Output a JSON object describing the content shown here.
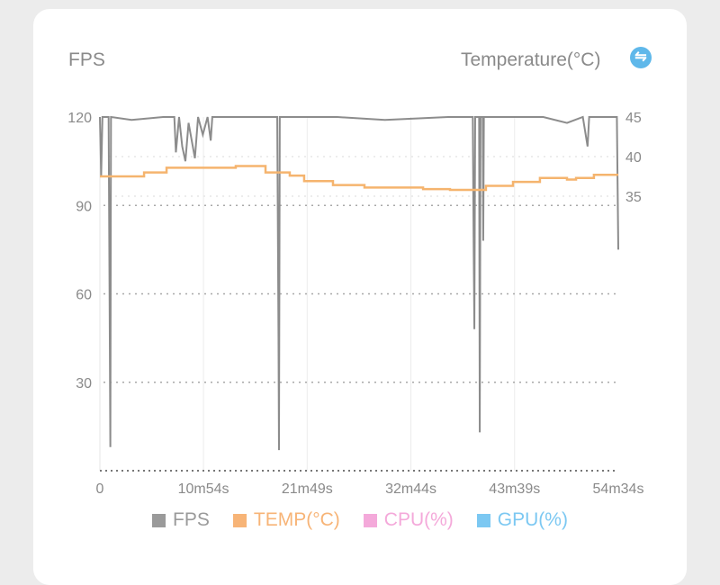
{
  "header": {
    "left_axis_title": "FPS",
    "right_axis_title": "Temperature(°C)",
    "swap_icon": "swap-vertical-icon"
  },
  "chart_data": {
    "type": "line",
    "xlabel": "",
    "x_unit": "seconds",
    "xlim": [
      0,
      3274
    ],
    "x_ticks": [
      0,
      654,
      1309,
      1964,
      2619,
      3274
    ],
    "x_tick_labels": [
      "0",
      "10m54s",
      "21m49s",
      "32m44s",
      "43m39s",
      "54m34s"
    ],
    "y_left": {
      "label": "FPS",
      "lim": [
        0,
        120
      ],
      "ticks": [
        30,
        60,
        90,
        120
      ]
    },
    "y_right": {
      "label": "Temperature(°C)",
      "lim": [
        0,
        45
      ],
      "ticks": [
        35,
        40,
        45
      ]
    },
    "grid": true,
    "legend_position": "bottom",
    "series": [
      {
        "name": "FPS",
        "axis": "left",
        "color": "#8c8c8c",
        "points": [
          [
            0,
            120
          ],
          [
            8,
            100
          ],
          [
            16,
            120
          ],
          [
            55,
            120
          ],
          [
            63,
            40
          ],
          [
            66,
            8
          ],
          [
            70,
            120
          ],
          [
            200,
            119
          ],
          [
            400,
            120
          ],
          [
            470,
            120
          ],
          [
            480,
            108
          ],
          [
            500,
            120
          ],
          [
            520,
            110
          ],
          [
            540,
            105
          ],
          [
            560,
            118
          ],
          [
            580,
            112
          ],
          [
            600,
            106
          ],
          [
            620,
            120
          ],
          [
            650,
            114
          ],
          [
            680,
            120
          ],
          [
            700,
            112
          ],
          [
            710,
            120
          ],
          [
            900,
            120
          ],
          [
            1120,
            120
          ],
          [
            1128,
            45
          ],
          [
            1131,
            7
          ],
          [
            1136,
            120
          ],
          [
            1500,
            120
          ],
          [
            1800,
            119
          ],
          [
            2200,
            120
          ],
          [
            2355,
            120
          ],
          [
            2360,
            80
          ],
          [
            2365,
            48
          ],
          [
            2370,
            120
          ],
          [
            2395,
            120
          ],
          [
            2399,
            13
          ],
          [
            2404,
            120
          ],
          [
            2418,
            120
          ],
          [
            2421,
            78
          ],
          [
            2425,
            120
          ],
          [
            2800,
            120
          ],
          [
            2950,
            118
          ],
          [
            3050,
            120
          ],
          [
            3080,
            110
          ],
          [
            3090,
            120
          ],
          [
            3265,
            120
          ],
          [
            3274,
            75
          ]
        ]
      },
      {
        "name": "TEMP(°C)",
        "axis": "right",
        "color": "#f5b46e",
        "points": [
          [
            0,
            37.5
          ],
          [
            279,
            38.0
          ],
          [
            421,
            38.6
          ],
          [
            858,
            38.8
          ],
          [
            1046,
            38.0
          ],
          [
            1199,
            37.6
          ],
          [
            1290,
            36.9
          ],
          [
            1472,
            36.4
          ],
          [
            1671,
            36.1
          ],
          [
            2041,
            35.9
          ],
          [
            2211,
            35.8
          ],
          [
            2438,
            36.3
          ],
          [
            2609,
            36.8
          ],
          [
            2779,
            37.3
          ],
          [
            2950,
            37.1
          ],
          [
            3007,
            37.3
          ],
          [
            3120,
            37.7
          ],
          [
            3274,
            37.7
          ]
        ]
      }
    ],
    "legend": [
      {
        "name": "FPS",
        "color": "#9a9a9a"
      },
      {
        "name": "TEMP(°C)",
        "color": "#f7b477"
      },
      {
        "name": "CPU(%)",
        "color": "#f4a9da"
      },
      {
        "name": "GPU(%)",
        "color": "#7cc8f2"
      }
    ]
  }
}
